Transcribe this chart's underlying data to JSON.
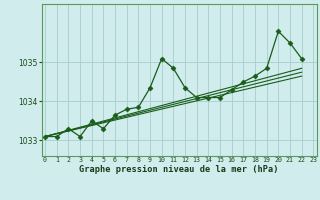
{
  "bg_color": "#d0ecec",
  "grid_color": "#a8cccc",
  "line_color": "#1a5c1a",
  "xlim": [
    -0.3,
    23.3
  ],
  "ylim": [
    1032.6,
    1036.5
  ],
  "yticks": [
    1033,
    1034,
    1035
  ],
  "xlabel": "Graphe pression niveau de la mer (hPa)",
  "main_x": [
    0,
    1,
    2,
    3,
    4,
    5,
    6,
    7,
    8,
    9,
    10,
    11,
    12,
    13,
    14,
    15,
    16,
    17,
    18,
    19,
    20,
    21,
    22
  ],
  "main_y": [
    1033.1,
    1033.1,
    1033.3,
    1033.1,
    1033.5,
    1033.3,
    1033.65,
    1033.8,
    1033.85,
    1034.35,
    1035.1,
    1034.85,
    1034.35,
    1034.1,
    1034.1,
    1034.1,
    1034.3,
    1034.5,
    1034.65,
    1034.85,
    1035.8,
    1035.5,
    1035.1
  ],
  "trend1_x": [
    0,
    22
  ],
  "trend1_y": [
    1033.1,
    1034.65
  ],
  "trend2_x": [
    0,
    22
  ],
  "trend2_y": [
    1033.1,
    1034.75
  ],
  "trend3_x": [
    0,
    22
  ],
  "trend3_y": [
    1033.1,
    1034.85
  ]
}
